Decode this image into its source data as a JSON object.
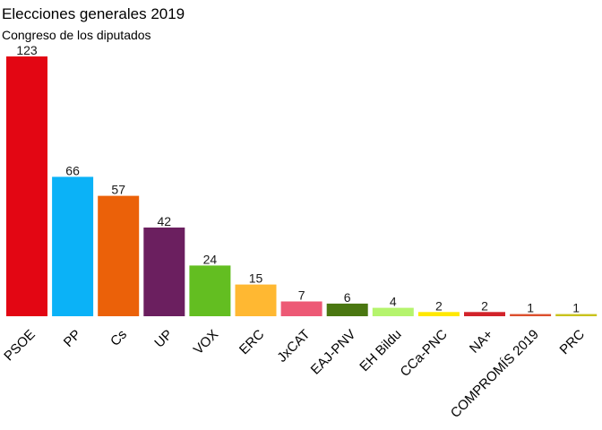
{
  "title": "Elecciones generales 2019",
  "subtitle": "Congreso de los diputados",
  "chart_data": {
    "type": "bar",
    "title": "Elecciones generales 2019",
    "subtitle": "Congreso de los diputados",
    "xlabel": "",
    "ylabel": "",
    "categories": [
      "PSOE",
      "PP",
      "Cs",
      "UP",
      "VOX",
      "ERC",
      "JxCAT",
      "EAJ-PNV",
      "EH Bildu",
      "CCa-PNC",
      "NA+",
      "COMPROMÍS 2019",
      "PRC"
    ],
    "values": [
      123,
      66,
      57,
      42,
      24,
      15,
      7,
      6,
      4,
      2,
      2,
      1,
      1
    ],
    "colors": [
      "#e30613",
      "#0bb2f7",
      "#eb6109",
      "#6b1f5f",
      "#63be21",
      "#ffb832",
      "#ed5975",
      "#4a7711",
      "#b5f46d",
      "#ffe800",
      "#d2232a",
      "#dc4f2d",
      "#c9c21c"
    ],
    "ylim": [
      0,
      123
    ],
    "grid": false,
    "legend": "none",
    "data_labels": true
  }
}
